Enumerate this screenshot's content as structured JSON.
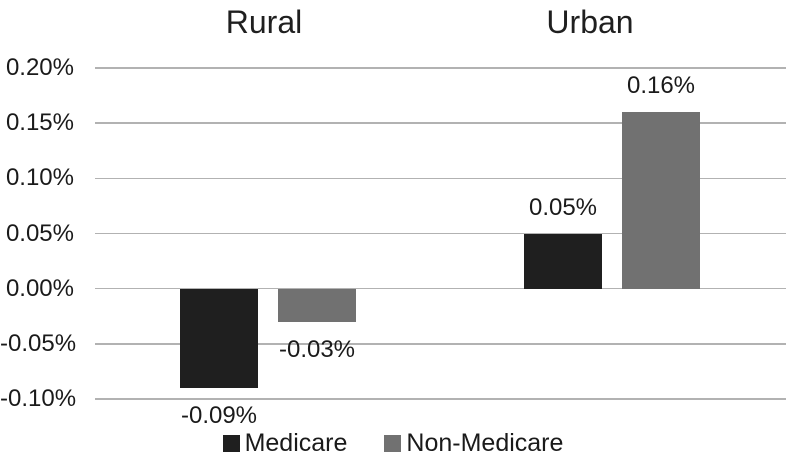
{
  "chart_data": {
    "type": "bar",
    "title": "",
    "categories": [
      "Rural",
      "Urban"
    ],
    "groups": [
      {
        "label": "Rural"
      },
      {
        "label": "Urban"
      }
    ],
    "series": [
      {
        "name": "Medicare",
        "color": "#1f1f1f",
        "values": [
          -0.09,
          0.05
        ],
        "value_labels": [
          "-0.09%",
          "0.05%"
        ]
      },
      {
        "name": "Non-Medicare",
        "color": "#717171",
        "values": [
          -0.03,
          0.16
        ],
        "value_labels": [
          "-0.03%",
          "0.16%"
        ]
      }
    ],
    "y_axis": {
      "unit": "%",
      "range": [
        -0.1,
        0.2
      ],
      "ticks": [
        {
          "label": "0.20%",
          "value": 0.2
        },
        {
          "label": "0.15%",
          "value": 0.15
        },
        {
          "label": "0.10%",
          "value": 0.1
        },
        {
          "label": "0.05%",
          "value": 0.05
        },
        {
          "label": "0.00%",
          "value": 0.0
        },
        {
          "label": "-0.05%",
          "value": -0.05
        },
        {
          "label": "-0.10%",
          "value": -0.1
        }
      ]
    },
    "legend": {
      "position": "bottom",
      "items": [
        "Medicare",
        "Non-Medicare"
      ]
    },
    "grid": true,
    "colors": {
      "background": "#ffffff",
      "gridline": "#b2b2b2",
      "text": "#1a1a1a"
    }
  }
}
